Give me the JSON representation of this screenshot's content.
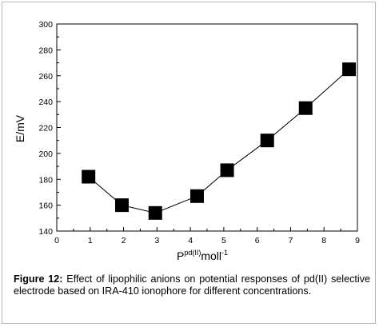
{
  "chart_data": {
    "type": "line",
    "title": "",
    "xlabel": {
      "base": "P",
      "superscript": "pd(II)",
      "unit": "moll",
      "unit_superscript": "-1"
    },
    "ylabel": "E/mV",
    "xlim": [
      0,
      9
    ],
    "ylim": [
      140,
      300
    ],
    "xticks": [
      "0",
      "1",
      "2",
      "3",
      "4",
      "5",
      "6",
      "7",
      "8",
      "9"
    ],
    "yticks": [
      "140",
      "160",
      "180",
      "200",
      "220",
      "240",
      "260",
      "280",
      "300"
    ],
    "marker": "square",
    "color": "#000000",
    "grid": false,
    "legend": "none",
    "x": [
      0.95,
      1.95,
      2.95,
      4.2,
      5.1,
      6.3,
      7.45,
      8.75
    ],
    "y": [
      182,
      160,
      154,
      167,
      187,
      210,
      235,
      265
    ]
  },
  "caption": {
    "label": "Figure 12:",
    "text": "Effect of lipophilic anions on potential responses of pd(II) selective electrode based on IRA-410 ionophore for different concentrations."
  }
}
